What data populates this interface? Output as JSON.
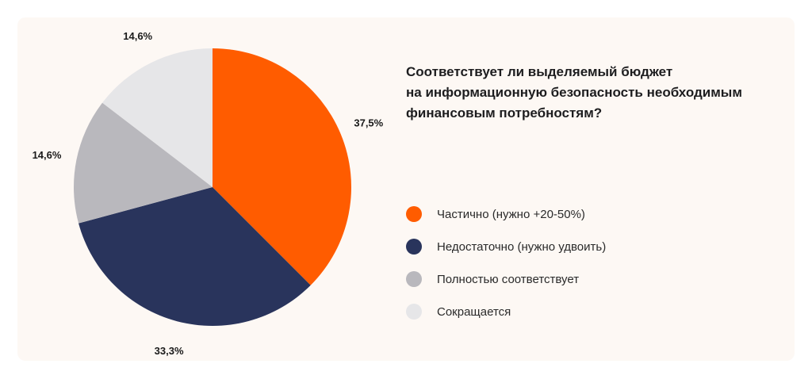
{
  "chart_data": {
    "type": "pie",
    "title_lines": [
      "Соответствует ли выделяемый бюджет",
      "на информационную безопасность необходимым",
      "финансовым потребностям?"
    ],
    "slices": [
      {
        "label": "Частично (нужно +20-50%)",
        "value": 37.5,
        "value_label": "37,5%",
        "color": "#ff5c00"
      },
      {
        "label": "Недостаточно (нужно удвоить)",
        "value": 33.3,
        "value_label": "33,3%",
        "color": "#29345c"
      },
      {
        "label": "Полностью соответствует",
        "value": 14.6,
        "value_label": "14,6%",
        "color": "#b9b8bd"
      },
      {
        "label": "Сокращается",
        "value": 14.6,
        "value_label": "14,6%",
        "color": "#e6e6e8"
      }
    ],
    "start_angle": "12 o'clock",
    "direction": "clockwise",
    "legend_position": "right"
  }
}
